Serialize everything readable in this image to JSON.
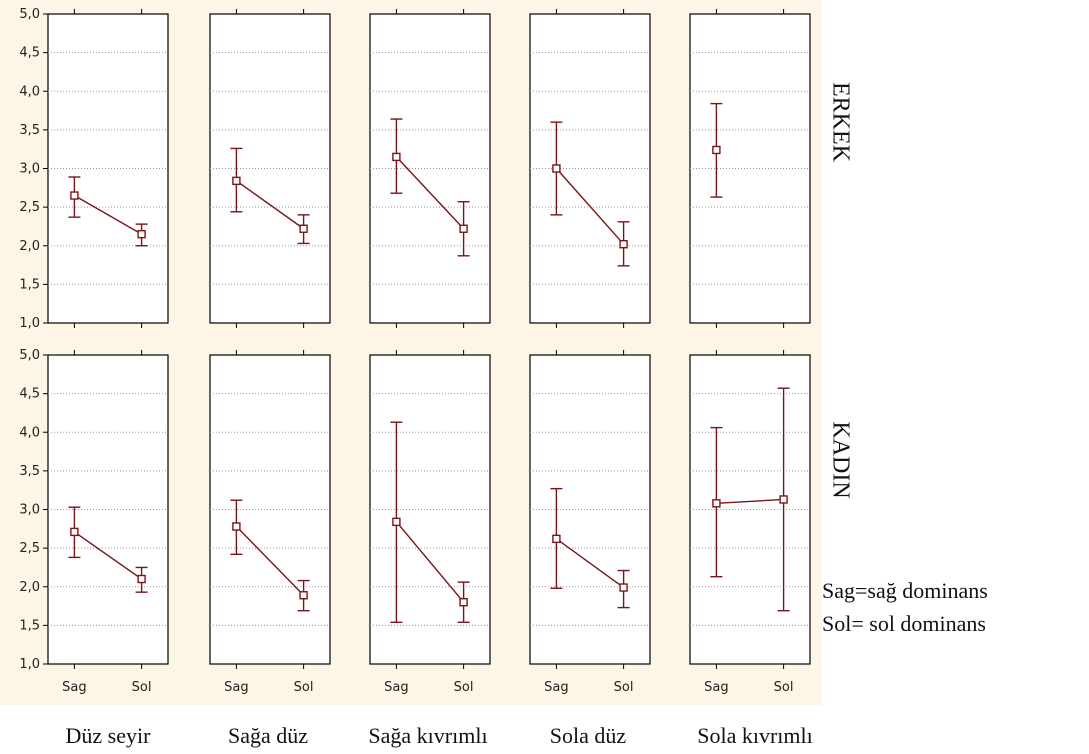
{
  "chart_data": {
    "type": "line",
    "error_bars": true,
    "ylim": [
      1.0,
      5.0
    ],
    "yticks": [
      "1,0",
      "1,5",
      "2,0",
      "2,5",
      "3,0",
      "3,5",
      "4,0",
      "4,5",
      "5,0"
    ],
    "ytick_values": [
      1.0,
      1.5,
      2.0,
      2.5,
      3.0,
      3.5,
      4.0,
      4.5,
      5.0
    ],
    "categories": [
      "Sag",
      "Sol"
    ],
    "panel_labels": [
      "Düz seyir",
      "Sağa düz",
      "Sağa kıvrımlı",
      "Sola düz",
      "Sola kıvrımlı"
    ],
    "row_labels": [
      "ERKEK",
      "KADIN"
    ],
    "grid": true,
    "legend_note": [
      "Sag=sağ dominans",
      "Sol= sol dominans"
    ],
    "colors": {
      "series": "#7a1418",
      "panel_background": "#fdf5e6",
      "frame": "#000000"
    },
    "rows": [
      {
        "name": "ERKEK",
        "panels": [
          {
            "panel": "Düz seyir",
            "points": [
              {
                "x": "Sag",
                "mean": 2.65,
                "lower": 2.37,
                "upper": 2.89
              },
              {
                "x": "Sol",
                "mean": 2.15,
                "lower": 2.0,
                "upper": 2.28
              }
            ]
          },
          {
            "panel": "Sağa düz",
            "points": [
              {
                "x": "Sag",
                "mean": 2.84,
                "lower": 2.44,
                "upper": 3.26
              },
              {
                "x": "Sol",
                "mean": 2.22,
                "lower": 2.03,
                "upper": 2.4
              }
            ]
          },
          {
            "panel": "Sağa kıvrımlı",
            "points": [
              {
                "x": "Sag",
                "mean": 3.15,
                "lower": 2.68,
                "upper": 3.64
              },
              {
                "x": "Sol",
                "mean": 2.22,
                "lower": 1.87,
                "upper": 2.57
              }
            ]
          },
          {
            "panel": "Sola düz",
            "points": [
              {
                "x": "Sag",
                "mean": 3.0,
                "lower": 2.4,
                "upper": 3.6
              },
              {
                "x": "Sol",
                "mean": 2.02,
                "lower": 1.74,
                "upper": 2.31
              }
            ]
          },
          {
            "panel": "Sola kıvrımlı",
            "points": [
              {
                "x": "Sag",
                "mean": 3.24,
                "lower": 2.63,
                "upper": 3.84
              }
            ]
          }
        ]
      },
      {
        "name": "KADIN",
        "panels": [
          {
            "panel": "Düz seyir",
            "points": [
              {
                "x": "Sag",
                "mean": 2.71,
                "lower": 2.38,
                "upper": 3.03
              },
              {
                "x": "Sol",
                "mean": 2.1,
                "lower": 1.93,
                "upper": 2.25
              }
            ]
          },
          {
            "panel": "Sağa düz",
            "points": [
              {
                "x": "Sag",
                "mean": 2.78,
                "lower": 2.42,
                "upper": 3.12
              },
              {
                "x": "Sol",
                "mean": 1.89,
                "lower": 1.69,
                "upper": 2.08
              }
            ]
          },
          {
            "panel": "Sağa kıvrımlı",
            "points": [
              {
                "x": "Sag",
                "mean": 2.84,
                "lower": 1.54,
                "upper": 4.13
              },
              {
                "x": "Sol",
                "mean": 1.8,
                "lower": 1.54,
                "upper": 2.06
              }
            ]
          },
          {
            "panel": "Sola düz",
            "points": [
              {
                "x": "Sag",
                "mean": 2.62,
                "lower": 1.98,
                "upper": 3.27
              },
              {
                "x": "Sol",
                "mean": 1.99,
                "lower": 1.73,
                "upper": 2.21
              }
            ]
          },
          {
            "panel": "Sola kıvrımlı",
            "points": [
              {
                "x": "Sag",
                "mean": 3.08,
                "lower": 2.13,
                "upper": 4.06
              },
              {
                "x": "Sol",
                "mean": 3.13,
                "lower": 1.69,
                "upper": 4.57
              }
            ]
          }
        ]
      }
    ]
  }
}
